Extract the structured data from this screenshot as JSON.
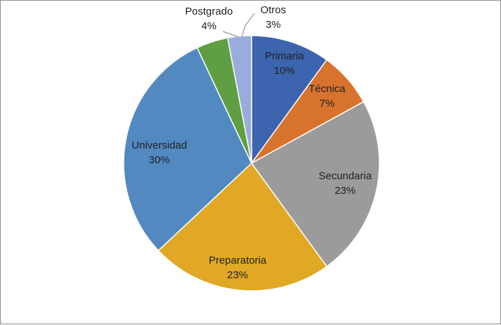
{
  "chart_data": {
    "type": "pie",
    "title": "",
    "unit": "%",
    "legend": "none",
    "slices": [
      {
        "label": "Primaria",
        "value": 10,
        "value_label": "10%",
        "color": "#3d64ae"
      },
      {
        "label": "Técnica",
        "value": 7,
        "value_label": "7%",
        "color": "#d8732e"
      },
      {
        "label": "Secundaria",
        "value": 23,
        "value_label": "23%",
        "color": "#9b9b9b"
      },
      {
        "label": "Preparatoria",
        "value": 23,
        "value_label": "23%",
        "color": "#e0a824"
      },
      {
        "label": "Universidad",
        "value": 30,
        "value_label": "30%",
        "color": "#5289c1"
      },
      {
        "label": "Postgrado",
        "value": 4,
        "value_label": "4%",
        "color": "#5f9e43"
      },
      {
        "label": "Otros",
        "value": 3,
        "value_label": "3%",
        "color": "#98addc"
      }
    ]
  }
}
